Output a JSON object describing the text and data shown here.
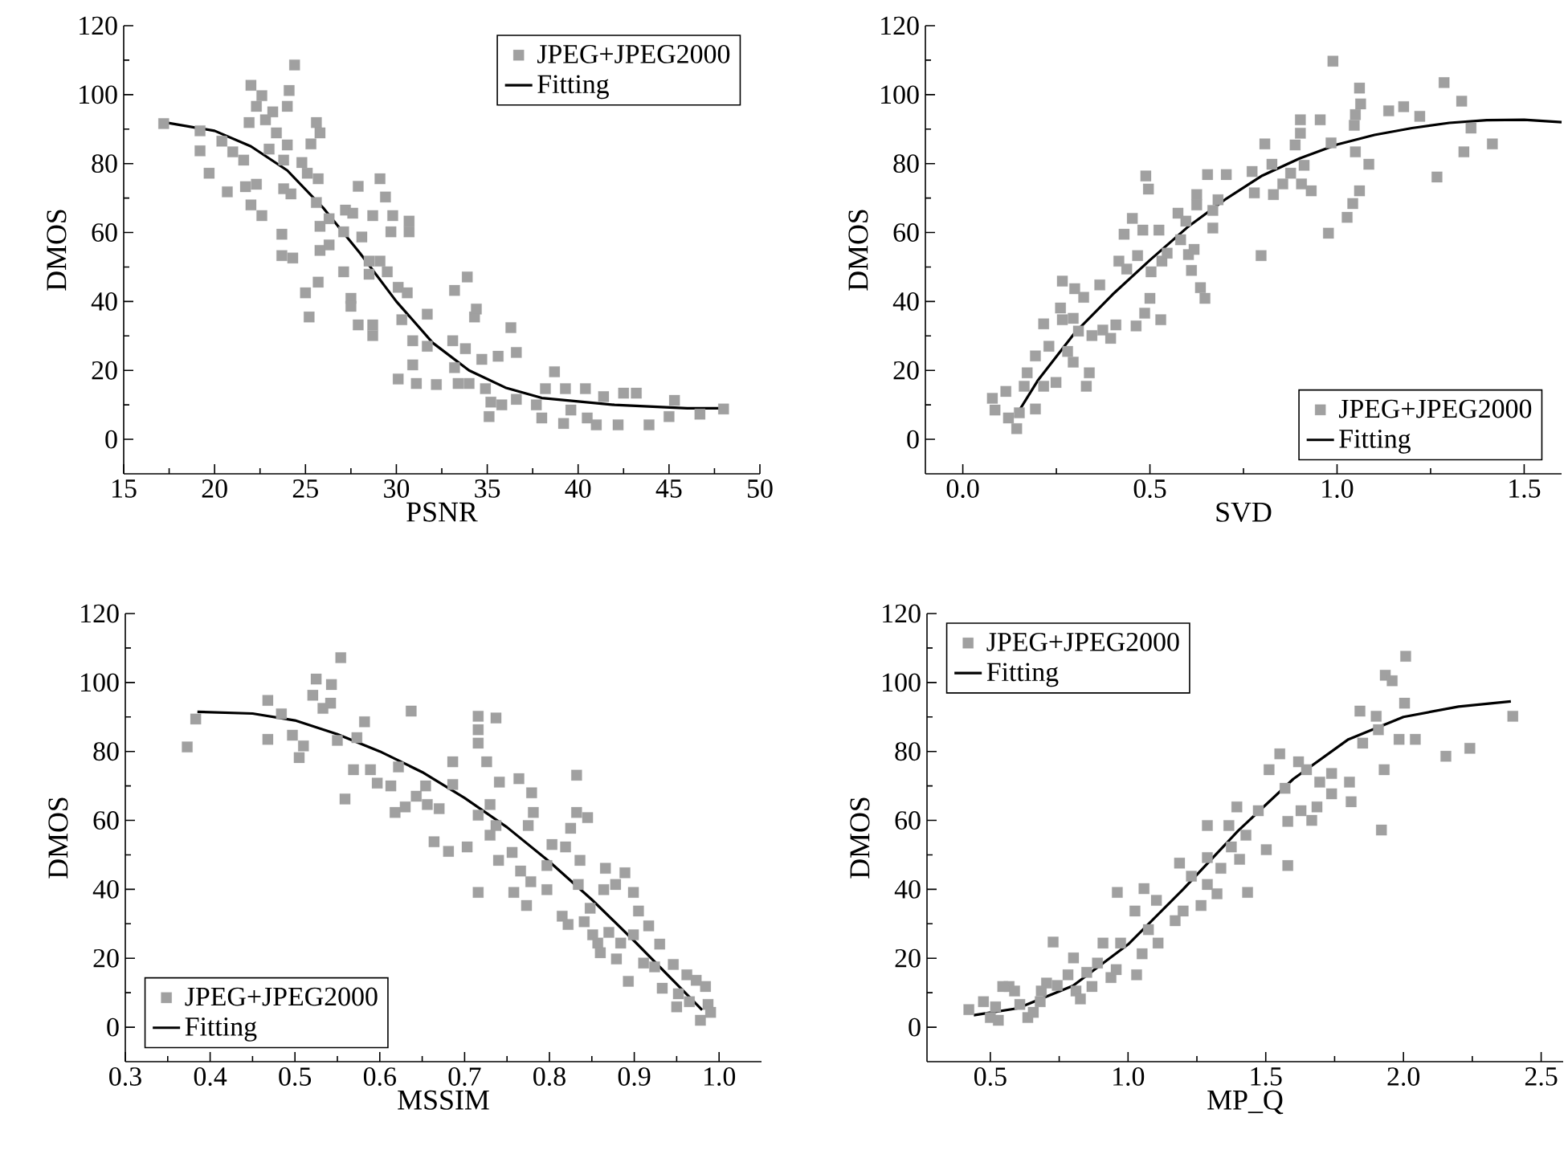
{
  "chart_data": [
    {
      "type": "scatter",
      "xlabel": "PSNR",
      "ylabel": "DMOS",
      "xlim": [
        15,
        50
      ],
      "ylim": [
        -10,
        120
      ],
      "xticks": [
        15,
        20,
        25,
        30,
        35,
        40,
        45,
        50
      ],
      "yticks": [
        0,
        20,
        40,
        60,
        80,
        100,
        120
      ],
      "legend": "top right",
      "series": [
        {
          "name": "JPEG+JPEG2000",
          "marker": "square",
          "color": "#a0a0a0",
          "x": [
            17.2,
            19.2,
            19.2,
            19.7,
            20.4,
            21.0,
            20.7,
            21.6,
            21.7,
            22.0,
            21.9,
            22.3,
            22.6,
            22.0,
            22.6,
            22.3,
            22.8,
            23.2,
            23.0,
            23.4,
            23.7,
            23.7,
            23.8,
            23.8,
            24.0,
            24.1,
            24.0,
            24.2,
            24.3,
            24.4,
            24.8,
            25.1,
            25.0,
            25.2,
            25.3,
            25.6,
            25.8,
            25.7,
            25.6,
            25.8,
            25.8,
            25.7,
            26.3,
            26.3,
            27.1,
            27.1,
            27.2,
            27.5,
            27.5,
            27.6,
            27.9,
            27.9,
            28.1,
            28.7,
            28.7,
            28.7,
            28.5,
            28.5,
            29.1,
            29.1,
            29.4,
            29.7,
            29.8,
            29.5,
            30.1,
            30.3,
            30.1,
            30.6,
            30.7,
            30.7,
            30.9,
            30.9,
            31.1,
            31.7,
            31.7,
            32.2,
            33.1,
            33.2,
            33.2,
            33.4,
            33.8,
            33.9,
            34.0,
            34.3,
            34.4,
            34.7,
            34.9,
            35.1,
            35.2,
            35.6,
            35.8,
            36.3,
            36.6,
            36.6,
            37.7,
            38.0,
            38.2,
            38.7,
            39.2,
            39.3,
            39.6,
            40.4,
            40.5,
            41.0,
            41.4,
            42.2,
            42.5,
            43.2,
            43.9,
            45.0,
            45.3,
            46.7,
            48.0
          ],
          "values": [
            91.6,
            89.5,
            83.7,
            77.2,
            86.5,
            83.4,
            71.8,
            81,
            73.3,
            102.7,
            91.9,
            96.6,
            99.7,
            68,
            64.9,
            74,
            92.7,
            95,
            84.2,
            88.9,
            59.5,
            53.3,
            72.7,
            81,
            96.6,
            101.2,
            85.4,
            71.2,
            52.6,
            108.6,
            80.3,
            77.2,
            42.5,
            35.5,
            85.7,
            91.9,
            88.9,
            75.6,
            68.7,
            61.8,
            54.8,
            45.6,
            64,
            56.4,
            60.2,
            48.6,
            66.5,
            40.9,
            38.6,
            65.6,
            73.4,
            33.2,
            58.7,
            64.9,
            30.1,
            33.2,
            51.7,
            47.9,
            75.6,
            51.7,
            70.3,
            60.2,
            64.9,
            48.6,
            44.1,
            34.7,
            17.5,
            42.5,
            63.3,
            60.2,
            28.6,
            21.6,
            16.2,
            36.3,
            27,
            15.9,
            28.6,
            43.2,
            20.8,
            16.2,
            26.3,
            47.1,
            16.2,
            35.5,
            37.8,
            23.2,
            14.7,
            6.6,
            10.8,
            24.1,
            10,
            32.4,
            25.2,
            11.6,
            10,
            6.2,
            14.7,
            19.6,
            4.6,
            14.7,
            8.5,
            14.7,
            6.2,
            4.2,
            12.4,
            4.2,
            13.4,
            13.4,
            4.2,
            6.6,
            11.3,
            7.3,
            8.8
          ]
        },
        {
          "name": "Fitting",
          "type": "line",
          "marker": "none",
          "color": "#000000",
          "x": [
            17.2,
            20,
            22,
            24,
            26,
            28,
            30,
            32,
            34,
            36,
            38,
            40,
            42,
            44,
            46,
            48
          ],
          "values": [
            92,
            89.5,
            85,
            78,
            67,
            54,
            40,
            28,
            20,
            15,
            12,
            11,
            10,
            9.5,
            9,
            9
          ]
        }
      ]
    },
    {
      "type": "scatter",
      "xlabel": "SVD",
      "ylabel": "DMOS",
      "xlim": [
        -0.1,
        1.6
      ],
      "ylim": [
        -10,
        120
      ],
      "xticks": [
        {
          "value": 0,
          "label": "0.0"
        },
        0.5,
        {
          "value": 1,
          "label": "1.0"
        },
        1.5
      ],
      "yticks": [
        0,
        20,
        40,
        60,
        80,
        100,
        120
      ],
      "legend": "bottom right",
      "series": [
        {
          "name": "JPEG+JPEG2000",
          "marker": "square",
          "color": "#a0a0a0",
          "x": [
            0.079,
            0.086,
            0.115,
            0.122,
            0.144,
            0.151,
            0.164,
            0.172,
            0.194,
            0.194,
            0.216,
            0.216,
            0.23,
            0.249,
            0.266,
            0.261,
            0.266,
            0.28,
            0.295,
            0.299,
            0.295,
            0.309,
            0.323,
            0.33,
            0.338,
            0.345,
            0.366,
            0.374,
            0.395,
            0.409,
            0.417,
            0.431,
            0.438,
            0.453,
            0.463,
            0.467,
            0.481,
            0.486,
            0.489,
            0.496,
            0.5,
            0.503,
            0.524,
            0.529,
            0.532,
            0.546,
            0.575,
            0.582,
            0.596,
            0.603,
            0.611,
            0.618,
            0.625,
            0.625,
            0.635,
            0.647,
            0.654,
            0.668,
            0.668,
            0.682,
            0.704,
            0.773,
            0.779,
            0.797,
            0.807,
            0.826,
            0.83,
            0.855,
            0.876,
            0.888,
            0.902,
            0.902,
            0.905,
            0.912,
            0.931,
            0.955,
            0.977,
            0.984,
            0.989,
            1.027,
            1.042,
            1.046,
            1.049,
            1.049,
            1.06,
            1.06,
            1.063,
            1.085,
            1.138,
            1.178,
            1.221,
            1.267,
            1.286,
            1.333,
            1.339,
            1.358,
            1.415
          ],
          "values": [
            11.9,
            8.5,
            13.9,
            6.2,
            3.1,
            7.7,
            15.4,
            19.3,
            8.8,
            24.2,
            33.5,
            15.4,
            27,
            16.5,
            45.9,
            38.1,
            34.7,
            25.5,
            22.4,
            43.7,
            35.1,
            31.4,
            41.2,
            15.4,
            19.3,
            30.1,
            44.8,
            31.7,
            29.3,
            33.2,
            51.7,
            59.5,
            49.4,
            64.1,
            32.9,
            53.3,
            60.7,
            36.6,
            76.4,
            72.6,
            40.9,
            48.6,
            60.7,
            34.7,
            51.7,
            54,
            65.6,
            57.9,
            63.3,
            53.6,
            49,
            55.1,
            68,
            71,
            44,
            40.9,
            76.8,
            66.4,
            61.3,
            69.5,
            76.8,
            77.7,
            71.5,
            53.3,
            85.7,
            79.8,
            71,
            74.1,
            77.2,
            85.4,
            92.7,
            88.8,
            74.1,
            79.5,
            72.1,
            92.7,
            59.8,
            86,
            109.7,
            64.4,
            68.4,
            91.1,
            94.2,
            83.4,
            72.1,
            101.9,
            97.3,
            79.8,
            95.3,
            96.5,
            93.7,
            76.1,
            103.5,
            98.1,
            83.4,
            90.3,
            85.7
          ]
        },
        {
          "name": "Fitting",
          "type": "line",
          "marker": "none",
          "color": "#000000",
          "x": [
            0.14,
            0.2,
            0.3,
            0.4,
            0.5,
            0.6,
            0.7,
            0.8,
            0.9,
            1.0,
            1.1,
            1.2,
            1.3,
            1.4,
            1.5,
            1.6
          ],
          "values": [
            6.5,
            17,
            31,
            42,
            52,
            61.5,
            69.5,
            76.5,
            81.5,
            85.5,
            88.3,
            90.3,
            91.8,
            92.6,
            92.7,
            92
          ]
        }
      ]
    },
    {
      "type": "scatter",
      "xlabel": "MSSIM",
      "ylabel": "DMOS",
      "xlim": [
        0.3,
        1.05
      ],
      "ylim": [
        -10,
        120
      ],
      "xticks": [
        0.3,
        0.4,
        0.5,
        0.6,
        0.7,
        0.8,
        0.9,
        {
          "value": 1,
          "label": "1.0"
        }
      ],
      "yticks": [
        0,
        20,
        40,
        60,
        80,
        100,
        120
      ],
      "legend": "bottom left",
      "series": [
        {
          "name": "JPEG+JPEG2000",
          "marker": "square",
          "color": "#a0a0a0",
          "x": [
            0.373,
            0.383,
            0.468,
            0.468,
            0.484,
            0.497,
            0.505,
            0.51,
            0.521,
            0.525,
            0.533,
            0.543,
            0.542,
            0.55,
            0.554,
            0.559,
            0.573,
            0.582,
            0.569,
            0.589,
            0.597,
            0.613,
            0.618,
            0.622,
            0.63,
            0.637,
            0.643,
            0.654,
            0.656,
            0.664,
            0.67,
            0.681,
            0.686,
            0.686,
            0.703,
            0.716,
            0.716,
            0.716,
            0.716,
            0.716,
            0.726,
            0.73,
            0.73,
            0.737,
            0.737,
            0.74,
            0.741,
            0.756,
            0.758,
            0.764,
            0.766,
            0.773,
            0.778,
            0.779,
            0.781,
            0.775,
            0.797,
            0.797,
            0.803,
            0.815,
            0.819,
            0.822,
            0.825,
            0.832,
            0.832,
            0.834,
            0.836,
            0.841,
            0.845,
            0.848,
            0.851,
            0.857,
            0.86,
            0.864,
            0.866,
            0.87,
            0.878,
            0.879,
            0.884,
            0.889,
            0.893,
            0.899,
            0.899,
            0.905,
            0.911,
            0.917,
            0.924,
            0.93,
            0.933,
            0.946,
            0.95,
            0.952,
            0.962,
            0.965,
            0.973,
            0.978,
            0.984,
            0.987,
            0.99
          ],
          "values": [
            81.3,
            89.4,
            94.8,
            83.5,
            90.9,
            84.7,
            78.2,
            81.6,
            96.3,
            101,
            92.5,
            99.4,
            94,
            83.2,
            107.2,
            66.2,
            84,
            88.6,
            74.7,
            74.7,
            70.8,
            70,
            62.3,
            75.5,
            63.9,
            91.7,
            67,
            70,
            64.6,
            53.8,
            63.4,
            51,
            77,
            70.4,
            52.3,
            90.2,
            86.3,
            82.4,
            61.5,
            39.1,
            77,
            55.7,
            64.6,
            58.5,
            89.7,
            48.4,
            71.1,
            50.7,
            39.1,
            72.1,
            45.3,
            35.3,
            42.2,
            68,
            62.3,
            58.5,
            39.9,
            46.9,
            53,
            32.2,
            52.3,
            29.8,
            57.7,
            73.1,
            62.3,
            41.4,
            48.4,
            30.6,
            60.8,
            34.5,
            26.8,
            24.4,
            21.6,
            39.9,
            46.1,
            27.5,
            41.4,
            19.8,
            24.4,
            44.8,
            13.3,
            39.1,
            26.8,
            33.7,
            18.6,
            29.4,
            17.5,
            24.1,
            11.3,
            18.2,
            5.9,
            9.7,
            15.2,
            7.4,
            13.6,
            2,
            11.8,
            6.6,
            4.3
          ]
        },
        {
          "name": "Fitting",
          "type": "line",
          "marker": "none",
          "color": "#000000",
          "x": [
            0.385,
            0.45,
            0.5,
            0.55,
            0.6,
            0.65,
            0.7,
            0.75,
            0.8,
            0.85,
            0.9,
            0.95,
            0.98
          ],
          "values": [
            91.5,
            91,
            89,
            85,
            80,
            74,
            66.5,
            58,
            48,
            37,
            25,
            12.5,
            5
          ]
        }
      ]
    },
    {
      "type": "scatter",
      "xlabel": "MP_Q",
      "ylabel": "DMOS",
      "xlim": [
        0.27,
        2.58
      ],
      "ylim": [
        -10,
        120
      ],
      "xticks": [
        0.5,
        {
          "value": 1,
          "label": "1.0"
        },
        1.5,
        {
          "value": 2,
          "label": "2.0"
        },
        2.5
      ],
      "yticks": [
        0,
        20,
        40,
        60,
        80,
        100,
        120
      ],
      "legend": "top left",
      "series": [
        {
          "name": "JPEG+JPEG2000",
          "marker": "square",
          "color": "#a0a0a0",
          "x": [
            0.422,
            0.475,
            0.5,
            0.519,
            0.529,
            0.545,
            0.568,
            0.588,
            0.607,
            0.636,
            0.656,
            0.681,
            0.685,
            0.704,
            0.728,
            0.743,
            0.782,
            0.802,
            0.811,
            0.827,
            0.85,
            0.869,
            0.889,
            0.909,
            0.938,
            0.957,
            0.961,
            0.973,
            1.025,
            1.031,
            1.058,
            1.051,
            1.074,
            1.103,
            1.109,
            1.171,
            1.187,
            1.2,
            1.23,
            1.265,
            1.288,
            1.288,
            1.288,
            1.323,
            1.337,
            1.366,
            1.375,
            1.395,
            1.405,
            1.428,
            1.434,
            1.473,
            1.502,
            1.512,
            1.551,
            1.57,
            1.58,
            1.58,
            1.619,
            1.628,
            1.648,
            1.667,
            1.686,
            1.696,
            1.739,
            1.739,
            1.804,
            1.81,
            1.842,
            1.852,
            1.901,
            1.909,
            1.92,
            1.93,
            1.934,
            1.959,
            1.984,
            2.004,
            2.008,
            2.043,
            2.154,
            2.241,
            2.397
          ],
          "values": [
            5.1,
            7.4,
            2.8,
            5.9,
            2,
            11.8,
            11.8,
            10.5,
            6.6,
            2.8,
            4.3,
            7.4,
            10.5,
            12.8,
            24.7,
            12.1,
            15.2,
            20.1,
            10.5,
            8.2,
            15.9,
            11.8,
            18.6,
            24.4,
            14.4,
            16.7,
            39.1,
            24.4,
            33.7,
            15.2,
            40.2,
            21.3,
            28.3,
            36.8,
            24.4,
            30.9,
            47.6,
            33.7,
            43.8,
            35.3,
            58.5,
            49.2,
            41.4,
            38.7,
            46.1,
            58.5,
            52.3,
            63.9,
            48.7,
            55.7,
            39.1,
            62.8,
            51.5,
            74.7,
            79.3,
            69.3,
            59.7,
            46.9,
            77,
            62.8,
            74.7,
            60,
            63.9,
            71.1,
            67.7,
            73.6,
            71.1,
            65.4,
            91.7,
            82.4,
            90.2,
            86.3,
            57.2,
            74.7,
            102.1,
            100.5,
            83.5,
            94,
            107.6,
            83.5,
            78.6,
            80.9,
            90.2
          ]
        },
        {
          "name": "Fitting",
          "type": "line",
          "marker": "none",
          "color": "#000000",
          "x": [
            0.44,
            0.6,
            0.8,
            1.0,
            1.2,
            1.4,
            1.6,
            1.8,
            2.0,
            2.2,
            2.39
          ],
          "values": [
            3.5,
            5.5,
            12,
            24,
            40,
            57,
            72,
            83.5,
            90,
            93,
            94.5
          ]
        }
      ]
    }
  ]
}
